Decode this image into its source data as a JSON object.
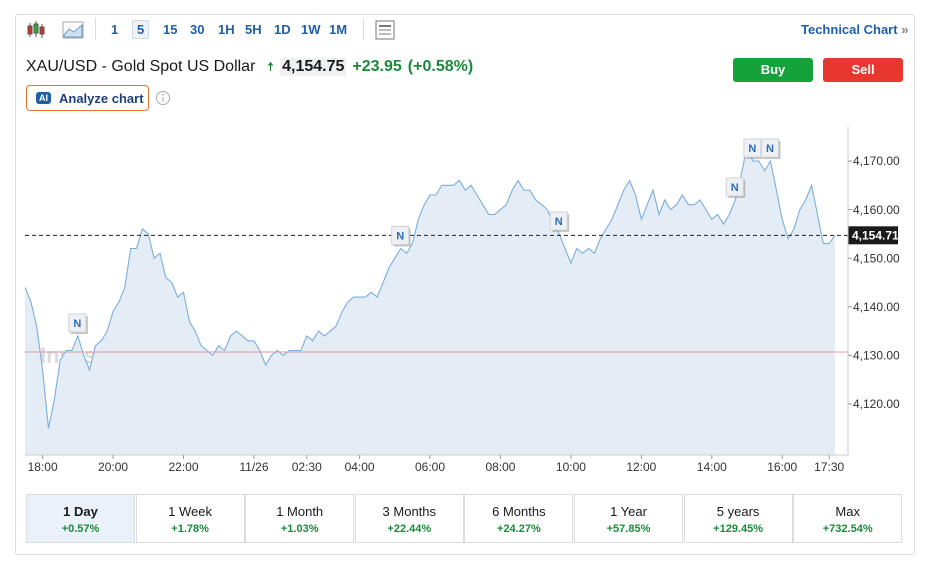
{
  "toolbar": {
    "intervals": [
      "1",
      "5",
      "15",
      "30",
      "1H",
      "5H",
      "1D",
      "1W",
      "1M"
    ],
    "selected": "5",
    "technical_chart": "Technical Chart"
  },
  "header": {
    "title": "XAU/USD - Gold Spot US Dollar",
    "price": "4,154.75",
    "change": "+23.95",
    "change_pct": "(+0.58%)",
    "buy": "Buy",
    "sell": "Sell",
    "analyze": "Analyze chart",
    "ai": "AI"
  },
  "chart_data": {
    "type": "line",
    "watermark": "Investing.com",
    "categories": [
      null,
      null,
      null,
      "18:00",
      null,
      null,
      null,
      null,
      null,
      null,
      null,
      null,
      null,
      null,
      null,
      "20:00",
      null,
      null,
      null,
      null,
      null,
      null,
      null,
      null,
      null,
      null,
      null,
      "22:00",
      null,
      null,
      null,
      null,
      null,
      null,
      null,
      null,
      null,
      null,
      null,
      "11/26",
      null,
      null,
      null,
      null,
      null,
      null,
      null,
      null,
      "02:30",
      null,
      null,
      null,
      null,
      null,
      null,
      null,
      null,
      "04:00",
      null,
      null,
      null,
      null,
      null,
      null,
      null,
      null,
      null,
      null,
      null,
      "06:00",
      null,
      null,
      null,
      null,
      null,
      null,
      null,
      null,
      null,
      null,
      null,
      "08:00",
      null,
      null,
      null,
      null,
      null,
      null,
      null,
      null,
      null,
      null,
      null,
      "10:00",
      null,
      null,
      null,
      null,
      null,
      null,
      null,
      null,
      null,
      null,
      null,
      "12:00",
      null,
      null,
      null,
      null,
      null,
      null,
      null,
      null,
      null,
      null,
      null,
      "14:00",
      null,
      null,
      null,
      null,
      null,
      null,
      null,
      null,
      null,
      null,
      null,
      "16:00",
      null,
      null,
      null,
      null,
      null,
      null,
      null,
      "17:30",
      null
    ],
    "series": [
      {
        "name": "XAU/USD",
        "color": "#7aaede",
        "fill": "#e4edf6",
        "values": [
          4144,
          4141,
          4136,
          4127,
          4115,
          4121,
          4129,
          4131,
          4131,
          4134,
          4130,
          4127,
          4132,
          4133,
          4135,
          4139,
          4141,
          4144,
          4152,
          4152,
          4156,
          4155,
          4150,
          4151,
          4146,
          4145,
          4142,
          4143,
          4137,
          4135,
          4132,
          4131,
          4130,
          4132,
          4131,
          4134,
          4135,
          4134,
          4133,
          4133,
          4131,
          4128,
          4130,
          4131,
          4130,
          4131,
          4131,
          4131,
          4134,
          4133,
          4135,
          4134,
          4135,
          4136,
          4139,
          4141,
          4142,
          4142,
          4142,
          4143,
          4142,
          4145,
          4148,
          4150,
          4152,
          4151,
          4153,
          4158,
          4161,
          4163,
          4163,
          4165,
          4165,
          4165,
          4166,
          4164,
          4165,
          4163,
          4161,
          4159,
          4159,
          4160,
          4161,
          4164,
          4166,
          4164,
          4164,
          4162,
          4161,
          4160,
          4157,
          4155,
          4152,
          4149,
          4152,
          4151,
          4152,
          4151,
          4154,
          4156,
          4158,
          4161,
          4164,
          4166,
          4163,
          4158,
          4161,
          4164,
          4159,
          4162,
          4160,
          4161,
          4163,
          4161,
          4161,
          4162,
          4160,
          4158,
          4159,
          4157,
          4159,
          4162,
          4167,
          4173,
          4170,
          4170,
          4168,
          4170,
          4164,
          4158,
          4154,
          4156,
          4160,
          4162,
          4165,
          4159,
          4153,
          4153,
          4154.71
        ]
      }
    ],
    "ylim": [
      4109.5,
      4177
    ],
    "yticks": [
      {
        "value": 4120,
        "label": "4,120.00"
      },
      {
        "value": 4130,
        "label": "4,130.00"
      },
      {
        "value": 4140,
        "label": "4,140.00"
      },
      {
        "value": 4150,
        "label": "4,150.00"
      },
      {
        "value": 4160,
        "label": "4,160.00"
      },
      {
        "value": 4170,
        "label": "4,170.00"
      }
    ],
    "price_line": {
      "value": 4154.71,
      "label": "4,154.71"
    },
    "reference_line": {
      "value": 4130.7,
      "color": "#e59a9a"
    },
    "markers": [
      {
        "label": "N",
        "at": 9
      },
      {
        "label": "N",
        "at": 64
      },
      {
        "label": "N",
        "at": 91
      },
      {
        "label": "N",
        "at": 121
      },
      {
        "label": "N",
        "at": 124
      },
      {
        "label": "N",
        "at": 127
      }
    ]
  },
  "periods": [
    {
      "label": "1 Day",
      "change": "+0.57%"
    },
    {
      "label": "1 Week",
      "change": "+1.78%"
    },
    {
      "label": "1 Month",
      "change": "+1.03%"
    },
    {
      "label": "3 Months",
      "change": "+22.44%"
    },
    {
      "label": "6 Months",
      "change": "+24.27%"
    },
    {
      "label": "1 Year",
      "change": "+57.85%"
    },
    {
      "label": "5 years",
      "change": "+129.45%"
    },
    {
      "label": "Max",
      "change": "+732.54%"
    }
  ]
}
